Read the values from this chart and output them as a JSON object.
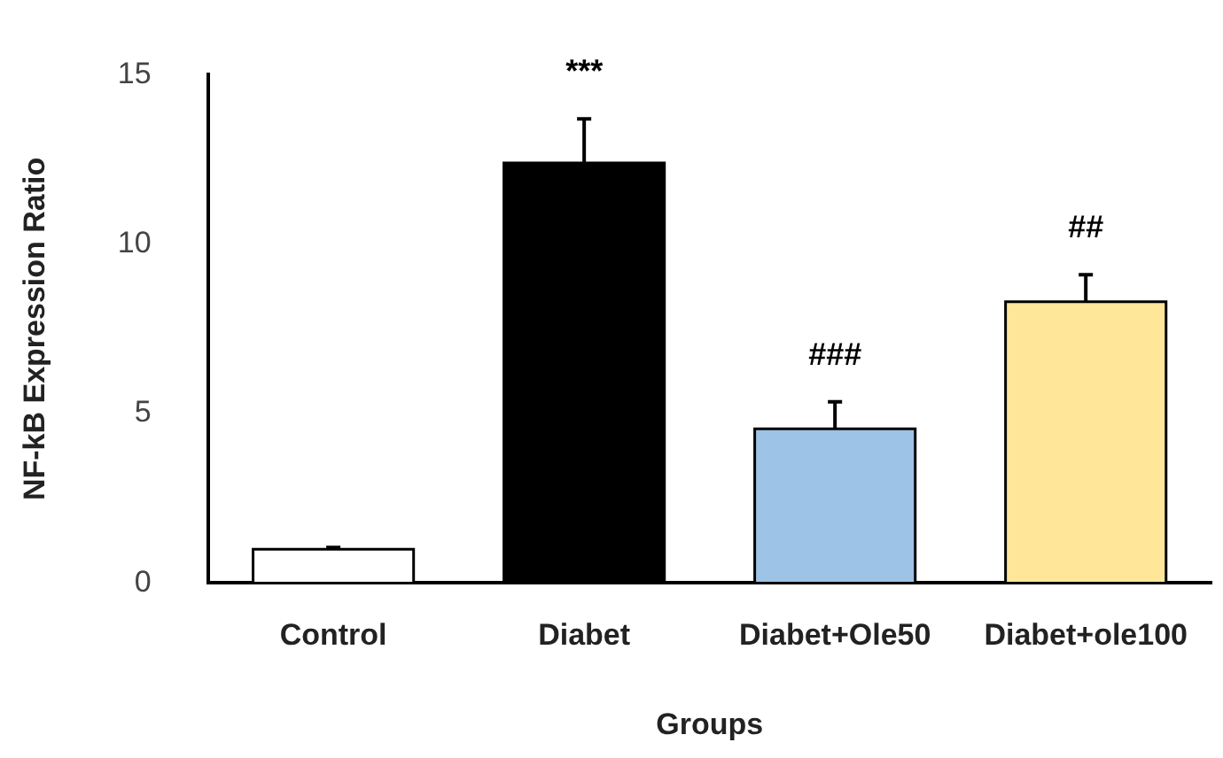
{
  "chart_data": {
    "type": "bar",
    "xlabel": "Groups",
    "ylabel": "NF-kB Expression Ratio",
    "categories": [
      "Control",
      "Diabet",
      "Diabet+Ole50",
      "Diabet+ole100"
    ],
    "values": [
      1.0,
      12.4,
      4.55,
      8.3
    ],
    "colors": [
      "#ffffff",
      "#000000",
      "#9dc3e6",
      "#ffe699"
    ],
    "errors": [
      [
        1.0,
        1.05
      ],
      [
        12.4,
        13.7
      ],
      [
        4.55,
        5.35
      ],
      [
        8.3,
        9.1
      ]
    ],
    "ylim": [
      0,
      15
    ],
    "yticks": [
      0,
      5,
      10,
      15
    ],
    "grid": false,
    "legend": false,
    "annotations": [
      {
        "text": "***",
        "x": "Diabet",
        "y": 13.7
      },
      {
        "text": "###",
        "x": "Diabet+Ole50",
        "y": 5.35
      },
      {
        "text": "##",
        "x": "Diabet+ole100",
        "y": 9.1
      }
    ]
  }
}
